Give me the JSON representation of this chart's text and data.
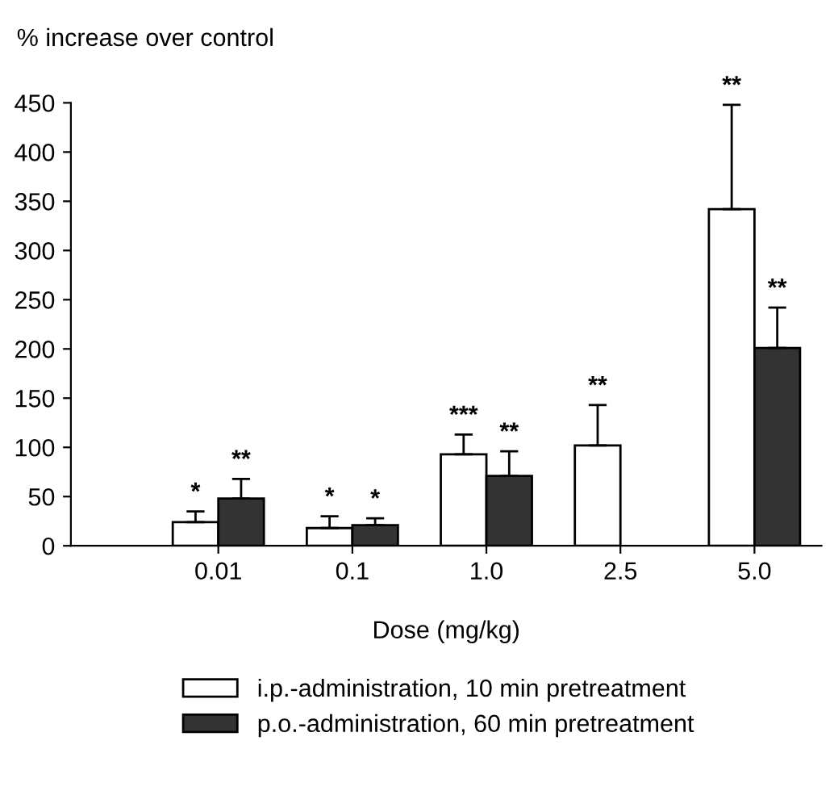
{
  "chart_data": {
    "type": "bar",
    "ylabel": "% increase over control",
    "xlabel": "Dose (mg/kg)",
    "categories": [
      "0.01",
      "0.1",
      "1.0",
      "2.5",
      "5.0"
    ],
    "series": [
      {
        "name": "i.p.-administration, 10 min pretreatment",
        "color": "#ffffff",
        "values": [
          24,
          18,
          93,
          102,
          342
        ],
        "errors": [
          [
            24,
            35
          ],
          [
            18,
            30
          ],
          [
            93,
            113
          ],
          [
            102,
            143
          ],
          [
            342,
            448
          ]
        ]
      },
      {
        "name": "p.o.-administration, 60 min pretreatment",
        "color": "#333333",
        "values": [
          48,
          21,
          71,
          null,
          201
        ],
        "errors": [
          [
            48,
            68
          ],
          [
            21,
            28
          ],
          [
            71,
            96
          ],
          null,
          [
            201,
            242
          ]
        ]
      }
    ],
    "ylim": [
      0,
      450
    ],
    "yticks": [
      0,
      50,
      100,
      150,
      200,
      250,
      300,
      350,
      400,
      450
    ],
    "legend": "bottom",
    "annotations": [
      "*",
      "**",
      "*",
      "*",
      "***",
      "**",
      "**",
      "**",
      "**"
    ]
  }
}
